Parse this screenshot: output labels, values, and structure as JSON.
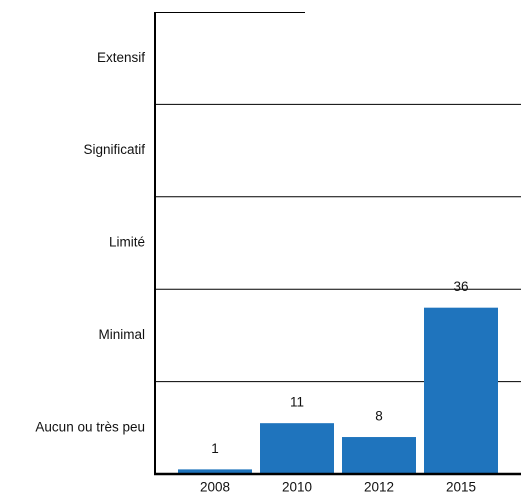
{
  "chart_data": {
    "type": "bar",
    "categories": [
      "2008",
      "2010",
      "2012",
      "2015"
    ],
    "values": [
      1,
      11,
      8,
      36
    ],
    "color": "#1f74bd",
    "ylim": [
      0,
      100
    ],
    "yticks": [
      {
        "value": 10,
        "label": "Aucun ou très peu"
      },
      {
        "value": 30,
        "label": "Minimal"
      },
      {
        "value": 50,
        "label": "Limité"
      },
      {
        "value": 70,
        "label": "Significatif"
      },
      {
        "value": 90,
        "label": "Extensif"
      }
    ],
    "ygrid": [
      20,
      40,
      60,
      80
    ]
  }
}
